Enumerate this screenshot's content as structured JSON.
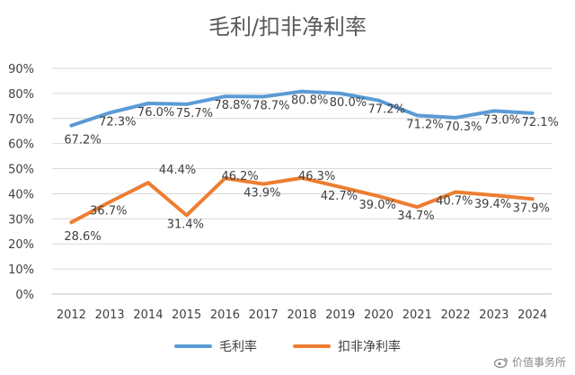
{
  "chart_data": {
    "type": "line",
    "title": "毛利/扣非净利率",
    "categories": [
      "2012",
      "2013",
      "2014",
      "2015",
      "2016",
      "2017",
      "2018",
      "2019",
      "2020",
      "2021",
      "2022",
      "2023",
      "2024"
    ],
    "y_ticks": [
      "0%",
      "10%",
      "20%",
      "30%",
      "40%",
      "50%",
      "60%",
      "70%",
      "80%",
      "90%"
    ],
    "ylim": [
      0,
      90
    ],
    "grid": true,
    "legend_position": "bottom",
    "series": [
      {
        "name": "毛利率",
        "color": "#5B9BD5",
        "values": [
          67.2,
          72.3,
          76.0,
          75.7,
          78.8,
          78.7,
          80.8,
          80.0,
          77.2,
          71.2,
          70.3,
          73.0,
          72.1
        ],
        "labels": [
          "67.2%",
          "72.3%",
          "76.0%",
          "75.7%",
          "78.8%",
          "78.7%",
          "80.8%",
          "80.0%",
          "77.2%",
          "71.2%",
          "70.3%",
          "73.0%",
          "72.1%"
        ]
      },
      {
        "name": "扣非净利率",
        "color": "#ED7D31",
        "values": [
          28.6,
          36.7,
          44.4,
          31.4,
          46.2,
          43.9,
          46.3,
          42.7,
          39.0,
          34.7,
          40.7,
          39.4,
          37.9
        ],
        "labels": [
          "28.6%",
          "36.7%",
          "44.4%",
          "31.4%",
          "46.2%",
          "43.9%",
          "46.3%",
          "42.7%",
          "39.0%",
          "34.7%",
          "40.7%",
          "39.4%",
          "37.9%"
        ]
      }
    ]
  },
  "watermark": {
    "text": "价值事务所"
  }
}
